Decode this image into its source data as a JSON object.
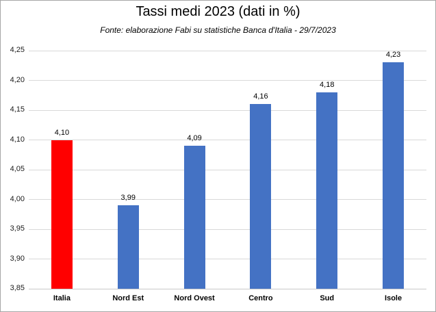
{
  "chart_data": {
    "type": "bar",
    "title": "Tassi medi 2023 (dati in %)",
    "subtitle": "Fonte: elaborazione Fabi su statistiche  Banca d'Italia - 29/7/2023",
    "categories": [
      "Italia",
      "Nord Est",
      "Nord Ovest",
      "Centro",
      "Sud",
      "Isole"
    ],
    "values": [
      4.1,
      3.99,
      4.09,
      4.16,
      4.18,
      4.23
    ],
    "value_labels": [
      "4,10",
      "3,99",
      "4,09",
      "4,16",
      "4,18",
      "4,23"
    ],
    "bar_colors": [
      "#ff0000",
      "#4472c4",
      "#4472c4",
      "#4472c4",
      "#4472c4",
      "#4472c4"
    ],
    "xlabel": "",
    "ylabel": "",
    "ylim": [
      3.85,
      4.25
    ],
    "ytick_step": 0.05,
    "ytick_labels": [
      "3,85",
      "3,90",
      "3,95",
      "4,00",
      "4,05",
      "4,10",
      "4,15",
      "4,20",
      "4,25"
    ],
    "grid": true,
    "legend": "none",
    "colors": {
      "highlight_bar": "#ff0000",
      "default_bar": "#4472c4",
      "gridline": "#d9d9d9",
      "axis_line": "#c9c9c9",
      "text": "#000000",
      "frame_border": "#a6a6a6",
      "background": "#ffffff"
    }
  }
}
